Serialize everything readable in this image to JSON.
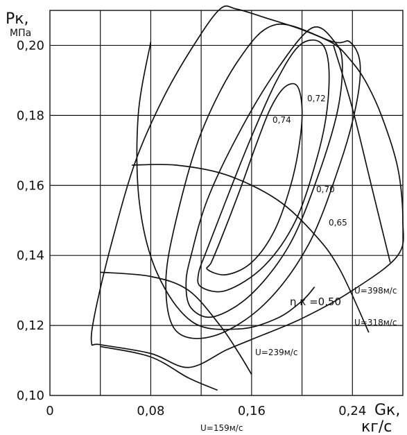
{
  "chart_data": {
    "type": "line",
    "title": "",
    "ylabel_symbol": "Pк,",
    "ylabel_unit": "МПа",
    "xlabel_symbol": "Gк,",
    "xlabel_unit": "кг/с",
    "xlim": [
      0,
      0.28
    ],
    "ylim": [
      0.1,
      0.21
    ],
    "grid": true,
    "x_ticks": [
      {
        "value": 0,
        "label": "0"
      },
      {
        "value": 0.08,
        "label": "0,08"
      },
      {
        "value": 0.16,
        "label": "0,16"
      },
      {
        "value": 0.24,
        "label": "0,24"
      }
    ],
    "y_ticks": [
      {
        "value": 0.1,
        "label": "0,10"
      },
      {
        "value": 0.12,
        "label": "0,12"
      },
      {
        "value": 0.14,
        "label": "0,14"
      },
      {
        "value": 0.16,
        "label": "0,16"
      },
      {
        "value": 0.18,
        "label": "0,18"
      },
      {
        "value": 0.2,
        "label": "0,20"
      }
    ],
    "grid_x": [
      0.04,
      0.08,
      0.12,
      0.16,
      0.2,
      0.24
    ],
    "grid_y": [
      0.12,
      0.14,
      0.16,
      0.18,
      0.2
    ],
    "map_boundary": {
      "label": "",
      "x": [
        0.033,
        0.036,
        0.05,
        0.068,
        0.09,
        0.114,
        0.135,
        0.148,
        0.17,
        0.2,
        0.225,
        0.238,
        0.25,
        0.263,
        0.276,
        0.28,
        0.276,
        0.24,
        0.2,
        0.16,
        0.14,
        0.11,
        0.08,
        0.04,
        0.033
      ],
      "y": [
        0.1151,
        0.124,
        0.145,
        0.167,
        0.185,
        0.2,
        0.2104,
        0.2104,
        0.208,
        0.2045,
        0.2005,
        0.196,
        0.19,
        0.18,
        0.165,
        0.15,
        0.14,
        0.13,
        0.122,
        0.116,
        0.113,
        0.108,
        0.112,
        0.1145,
        0.1151
      ]
    },
    "speed_lines": [
      {
        "label": "U=159м/с",
        "x": [
          0.04,
          0.08,
          0.11,
          0.133
        ],
        "y": [
          0.114,
          0.111,
          0.105,
          0.1015
        ]
      },
      {
        "label": "U=239м/с",
        "x": [
          0.04,
          0.08,
          0.11,
          0.135,
          0.15,
          0.16
        ],
        "y": [
          0.1352,
          0.134,
          0.13,
          0.12,
          0.112,
          0.106
        ]
      },
      {
        "label": "U=318м/с",
        "x": [
          0.065,
          0.1,
          0.14,
          0.18,
          0.21,
          0.23,
          0.253
        ],
        "y": [
          0.1658,
          0.1658,
          0.163,
          0.156,
          0.146,
          0.136,
          0.118
        ]
      },
      {
        "label": "U=398м/с",
        "x": [
          0.225,
          0.24,
          0.255,
          0.27
        ],
        "y": [
          0.2,
          0.182,
          0.16,
          0.138
        ]
      }
    ],
    "efficiency_contours": [
      {
        "label": "0,74",
        "closed": true,
        "x": [
          0.125,
          0.14,
          0.16,
          0.178,
          0.191,
          0.198,
          0.2,
          0.196,
          0.186,
          0.175,
          0.164,
          0.15,
          0.135,
          0.128,
          0.125
        ],
        "y": [
          0.136,
          0.1345,
          0.138,
          0.147,
          0.16,
          0.172,
          0.182,
          0.1885,
          0.188,
          0.182,
          0.172,
          0.158,
          0.144,
          0.138,
          0.136
        ]
      },
      {
        "label": "0,72",
        "closed": true,
        "x": [
          0.12,
          0.14,
          0.17,
          0.195,
          0.212,
          0.22,
          0.221,
          0.214,
          0.198,
          0.18,
          0.16,
          0.14,
          0.125,
          0.118,
          0.12
        ],
        "y": [
          0.131,
          0.13,
          0.137,
          0.15,
          0.168,
          0.182,
          0.195,
          0.201,
          0.2,
          0.19,
          0.174,
          0.156,
          0.142,
          0.135,
          0.131
        ]
      },
      {
        "label": "0,70",
        "closed": true,
        "x": [
          0.112,
          0.13,
          0.16,
          0.19,
          0.212,
          0.228,
          0.232,
          0.226,
          0.208,
          0.18,
          0.15,
          0.125,
          0.112,
          0.108,
          0.112
        ],
        "y": [
          0.125,
          0.1225,
          0.129,
          0.143,
          0.162,
          0.181,
          0.195,
          0.201,
          0.205,
          0.193,
          0.175,
          0.156,
          0.14,
          0.132,
          0.125
        ]
      },
      {
        "label": "0,65",
        "closed": true,
        "x": [
          0.1,
          0.13,
          0.17,
          0.205,
          0.23,
          0.243,
          0.246,
          0.238,
          0.225,
          0.18,
          0.15,
          0.12,
          0.1,
          0.092,
          0.1
        ],
        "y": [
          0.1185,
          0.117,
          0.126,
          0.143,
          0.166,
          0.183,
          0.195,
          0.201,
          0.201,
          0.206,
          0.196,
          0.175,
          0.15,
          0.132,
          0.1185
        ]
      },
      {
        "label": "η к =0,50",
        "closed": false,
        "x": [
          0.08,
          0.07,
          0.071,
          0.085,
          0.113,
          0.15,
          0.18,
          0.2,
          0.21
        ],
        "y": [
          0.201,
          0.18,
          0.155,
          0.135,
          0.121,
          0.119,
          0.122,
          0.127,
          0.131
        ]
      }
    ]
  }
}
